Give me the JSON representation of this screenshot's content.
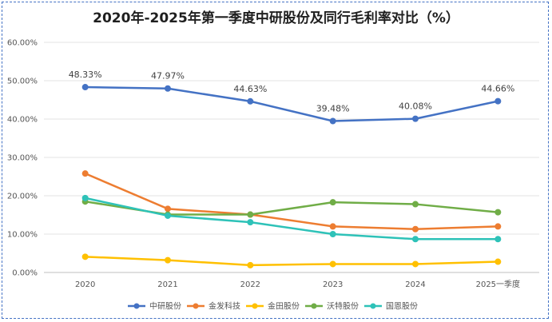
{
  "chart_data": {
    "type": "line",
    "title": "2020年-2025年第一季度中研股份及同行毛利率对比（%）",
    "categories": [
      "2020",
      "2021",
      "2022",
      "2023",
      "2024",
      "2025一季度"
    ],
    "ylim": [
      0,
      60
    ],
    "y_ticks": [
      "0.00%",
      "10.00%",
      "20.00%",
      "30.00%",
      "40.00%",
      "50.00%",
      "60.00%"
    ],
    "grid": true,
    "legend_position": "bottom",
    "series": [
      {
        "name": "中研股份",
        "color": "#4472c4",
        "values": [
          48.33,
          47.97,
          44.63,
          39.48,
          40.08,
          44.66
        ],
        "labels": [
          "48.33%",
          "47.97%",
          "44.63%",
          "39.48%",
          "40.08%",
          "44.66%"
        ]
      },
      {
        "name": "金发科技",
        "color": "#ed7d31",
        "values": [
          25.8,
          16.6,
          15.1,
          12.0,
          11.3,
          12.0
        ]
      },
      {
        "name": "金田股份",
        "color": "#ffc000",
        "values": [
          4.1,
          3.2,
          1.9,
          2.2,
          2.2,
          2.8
        ]
      },
      {
        "name": "沃特股份",
        "color": "#70ad47",
        "values": [
          18.5,
          15.1,
          15.1,
          18.3,
          17.8,
          15.7
        ]
      },
      {
        "name": "国恩股份",
        "color": "#2ec2b8",
        "values": [
          19.4,
          14.8,
          13.1,
          10.0,
          8.7,
          8.7
        ]
      }
    ]
  }
}
